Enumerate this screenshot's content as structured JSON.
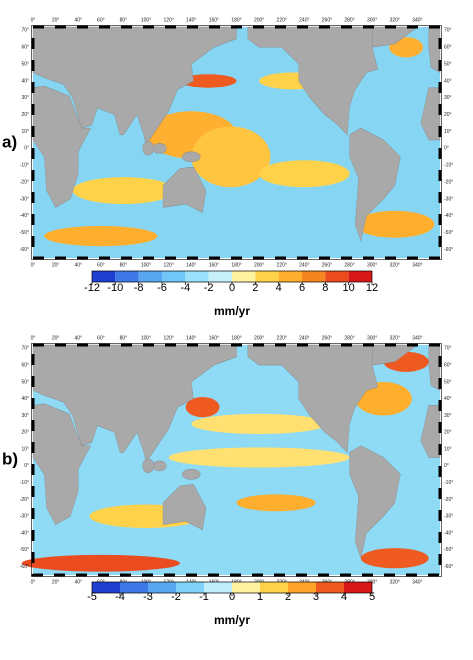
{
  "panels": [
    {
      "label": "a)",
      "colorbar": {
        "ticks": [
          -12,
          -10,
          -8,
          -6,
          -4,
          -2,
          0,
          2,
          4,
          6,
          8,
          10,
          12
        ],
        "colors": [
          "#1f3fd0",
          "#3d78e6",
          "#58a6f0",
          "#70c6f6",
          "#9ae0fa",
          "#c8f0fb",
          "#fff2a0",
          "#ffd24a",
          "#ffae2e",
          "#f5861f",
          "#ea4b1f",
          "#d81818"
        ],
        "unit": "mm/yr"
      }
    },
    {
      "label": "b)",
      "colorbar": {
        "ticks": [
          -5,
          -4,
          -3,
          -2,
          -1,
          0,
          1,
          2,
          3,
          4,
          5
        ],
        "colors": [
          "#1f3fd0",
          "#3d78e6",
          "#58a6f0",
          "#80d2f8",
          "#c0eefb",
          "#fff2a0",
          "#ffd24a",
          "#ffa42a",
          "#ee5a1f",
          "#d81818"
        ],
        "unit": "mm/yr"
      }
    }
  ],
  "lon_labels": [
    "0°",
    "20°",
    "40°",
    "60°",
    "80°",
    "100°",
    "120°",
    "140°",
    "160°",
    "180°",
    "200°",
    "220°",
    "240°",
    "260°",
    "280°",
    "300°",
    "320°",
    "340°"
  ],
  "lat_labels": [
    "70°",
    "60°",
    "50°",
    "40°",
    "30°",
    "20°",
    "10°",
    "0°",
    "-10°",
    "-20°",
    "-30°",
    "-40°",
    "-50°",
    "-60°"
  ]
}
